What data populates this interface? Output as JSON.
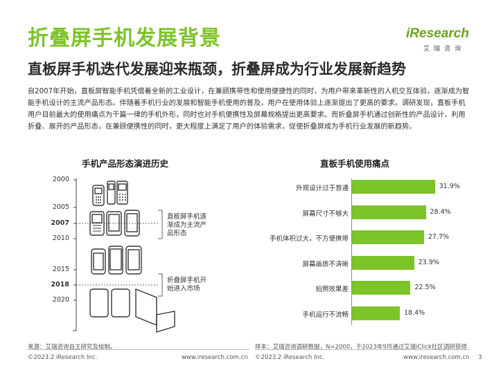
{
  "page": {
    "title": "折叠屏手机发展背景",
    "subtitle": "直板屏手机迭代发展迎来瓶颈，折叠屏成为行业发展新趋势",
    "body": "自2007年开始，直板屏智能手机凭借着全新的工业设计，在兼顾携带性和使用便捷性的同时，为用户带来革新性的人机交互体验，逐渐成为智能手机设计的主流产品形态。伴随着手机行业的发展和智能手机使用的普及，用户在使用体验上逐渐提出了更高的要求。调研发现，直板手机用户目前最大的使用痛点为千篇一律的手机外形，同时也对手机便携性及屏幕规格提出更高要求。而折叠屏手机通过创新性的产品设计，利用折叠、展开的产品形态，在兼顾便携性的同时，更大程度上满足了用户的体验需求，促使折叠屏成为手机行业发展的新趋势。",
    "page_number": "3"
  },
  "logo": {
    "name": "iResearch",
    "sub": "艾瑞咨询"
  },
  "timeline": {
    "title": "手机产品形态演进历史",
    "years": [
      {
        "label": "2000",
        "bold": false
      },
      {
        "label": "2005",
        "bold": false
      },
      {
        "label": "2007",
        "bold": true
      },
      {
        "label": "2010",
        "bold": false
      },
      {
        "label": "2015",
        "bold": false
      },
      {
        "label": "2018",
        "bold": true
      },
      {
        "label": "2020",
        "bold": false
      }
    ],
    "annotation_1": [
      "直板屏手机逐",
      "渐成为主流产",
      "品形态"
    ],
    "annotation_2": [
      "折叠屏手机开",
      "始进入市场"
    ]
  },
  "pain_chart": {
    "title": "直板手机使用痛点"
  },
  "chart_data": {
    "type": "bar",
    "title": "直板手机使用痛点",
    "categories": [
      "外观设计过于普通",
      "屏幕尺寸不够大",
      "手机体积过大，不方便携带",
      "屏幕画质不清晰",
      "拍照效果差",
      "手机运行不流畅"
    ],
    "values": [
      31.9,
      28.4,
      27.7,
      23.9,
      22.5,
      18.4
    ],
    "value_labels": [
      "31.9%",
      "28.4%",
      "27.7%",
      "23.9%",
      "22.5%",
      "18.4%"
    ],
    "unit": "%",
    "xlabel": "",
    "ylabel": "",
    "xlim": [
      0,
      32
    ],
    "color": "#7dc32a"
  },
  "footer": {
    "source_left": "来源：艾瑞咨询自主研究及绘制。",
    "source_right": "样本：艾瑞咨询调研数据，N=2000，于2023年9月通过艾瑞iClick社区调研获得",
    "copyright_left": "©2023.2 iResearch Inc.",
    "url_left": "www.iresearch.com.cn",
    "copyright_right": "©2023.2 iResearch Inc.",
    "url_right": "www.iresearch.com.cn"
  },
  "colors": {
    "accent": "#7dc32a",
    "text": "#333333"
  }
}
